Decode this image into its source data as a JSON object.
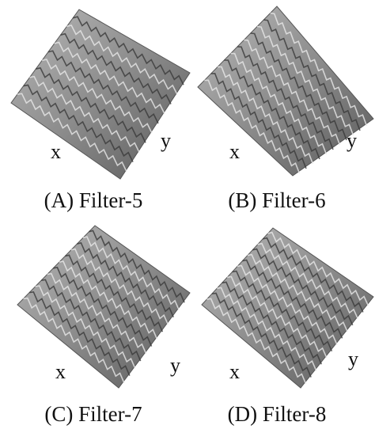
{
  "panels": [
    {
      "caption": "(A) Filter-5",
      "x_label": "x",
      "y_label": "y"
    },
    {
      "caption": "(B) Filter-6",
      "x_label": "x",
      "y_label": "y"
    },
    {
      "caption": "(C) Filter-7",
      "x_label": "x",
      "y_label": "y"
    },
    {
      "caption": "(D) Filter-8",
      "x_label": "x",
      "y_label": "y"
    }
  ]
}
